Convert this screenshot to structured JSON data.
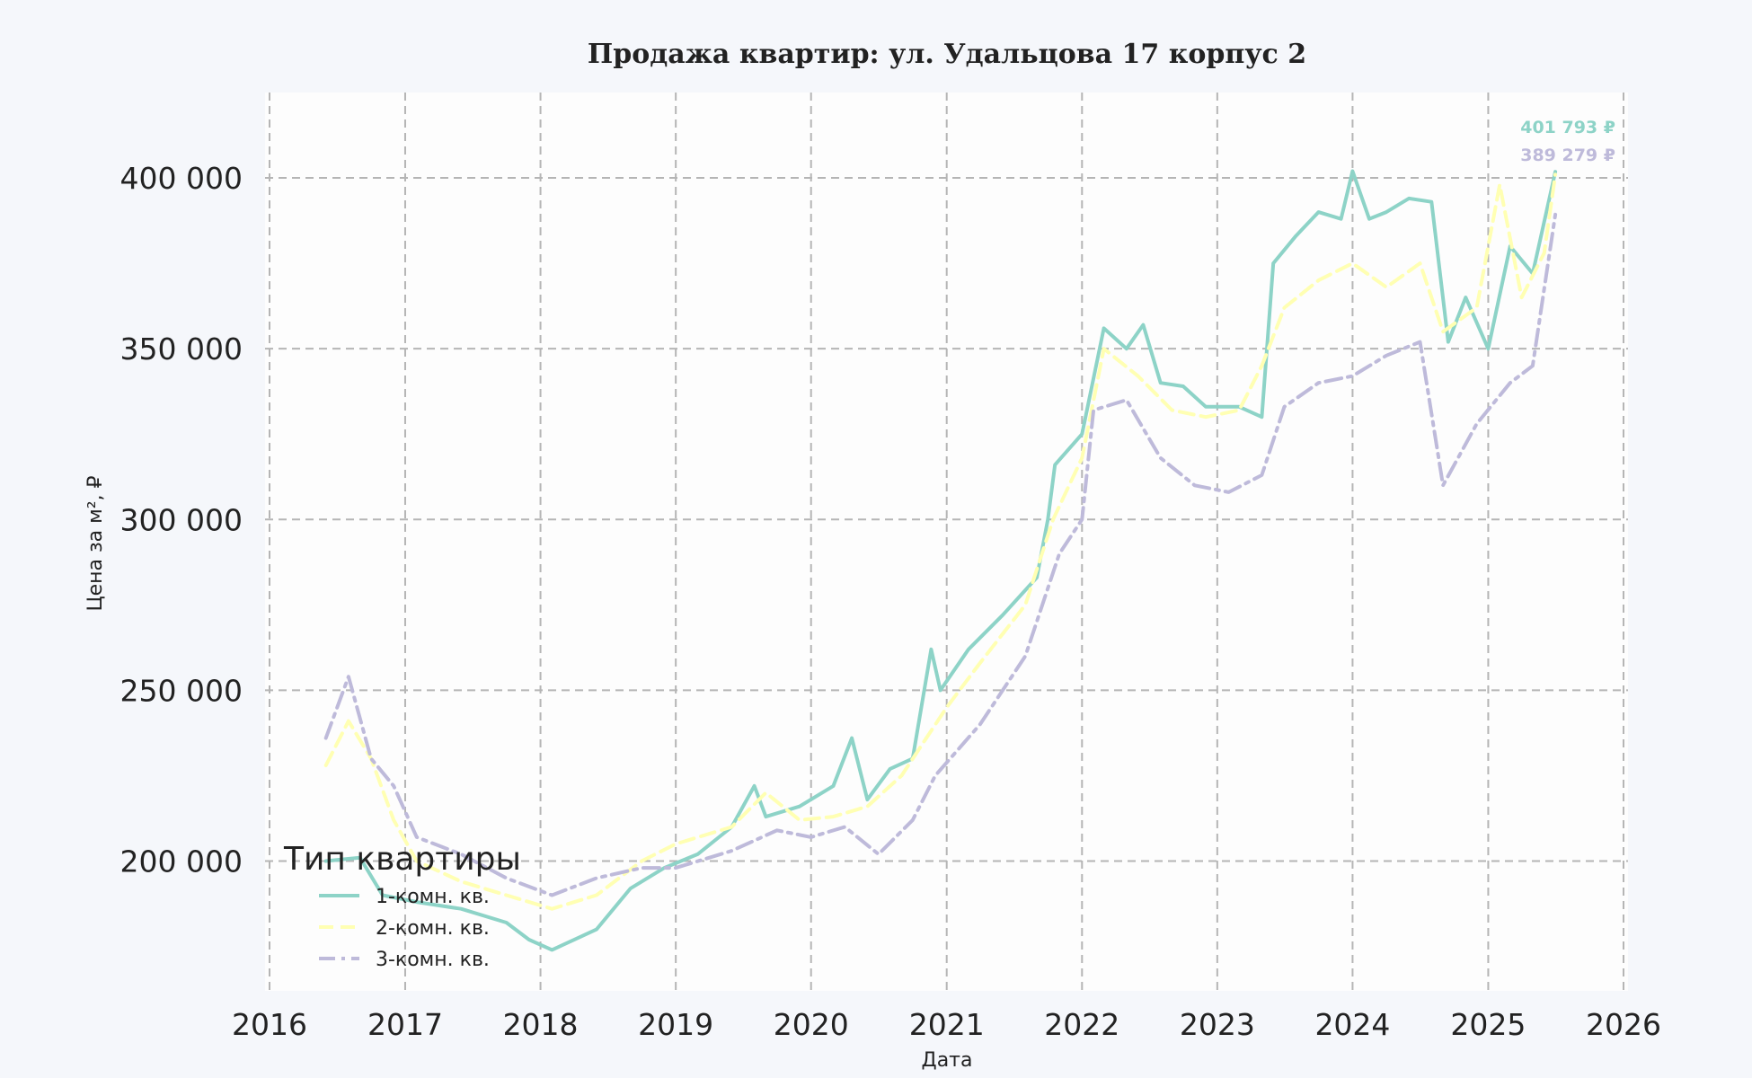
{
  "chart_data": {
    "type": "line",
    "title": "Продажа квартир: ул. Удальцова 17 корпус 2",
    "xlabel": "Дата",
    "ylabel": "Цена за м², ₽",
    "xlim": [
      "2016-01-01",
      "2026-01-01"
    ],
    "ylim": [
      162000,
      425000
    ],
    "x_ticks": [
      "2016",
      "2017",
      "2018",
      "2019",
      "2020",
      "2021",
      "2022",
      "2023",
      "2024",
      "2025",
      "2026"
    ],
    "y_ticks": [
      {
        "value": 200000,
        "label": "200 000"
      },
      {
        "value": 250000,
        "label": "250 000"
      },
      {
        "value": 300000,
        "label": "300 000"
      },
      {
        "value": 350000,
        "label": "350 000"
      },
      {
        "value": 400000,
        "label": "400 000"
      }
    ],
    "grid": true,
    "legend": {
      "title": "Тип квартиры",
      "position": "lower-left"
    },
    "series": [
      {
        "name": "1-комн. кв.",
        "color": "#8dd3c7",
        "dash": "solid",
        "end_label": "401 793 ₽",
        "points": [
          [
            "2016-06-01",
            200000
          ],
          [
            "2016-09-01",
            201000
          ],
          [
            "2016-11-01",
            190000
          ],
          [
            "2017-02-01",
            188000
          ],
          [
            "2017-06-01",
            186000
          ],
          [
            "2017-10-01",
            182000
          ],
          [
            "2017-12-01",
            177000
          ],
          [
            "2018-02-01",
            174000
          ],
          [
            "2018-06-01",
            180000
          ],
          [
            "2018-09-01",
            192000
          ],
          [
            "2018-12-01",
            198000
          ],
          [
            "2019-03-01",
            202000
          ],
          [
            "2019-06-01",
            210000
          ],
          [
            "2019-08-01",
            222000
          ],
          [
            "2019-09-01",
            213000
          ],
          [
            "2019-12-01",
            216000
          ],
          [
            "2020-03-01",
            222000
          ],
          [
            "2020-04-20",
            236000
          ],
          [
            "2020-06-01",
            218000
          ],
          [
            "2020-08-01",
            227000
          ],
          [
            "2020-10-01",
            230000
          ],
          [
            "2020-11-20",
            262000
          ],
          [
            "2020-12-15",
            250000
          ],
          [
            "2021-03-01",
            262000
          ],
          [
            "2021-06-01",
            272000
          ],
          [
            "2021-09-01",
            283000
          ],
          [
            "2021-10-01",
            300000
          ],
          [
            "2021-10-20",
            316000
          ],
          [
            "2022-01-01",
            325000
          ],
          [
            "2022-03-01",
            356000
          ],
          [
            "2022-05-01",
            350000
          ],
          [
            "2022-06-15",
            357000
          ],
          [
            "2022-08-01",
            340000
          ],
          [
            "2022-10-01",
            339000
          ],
          [
            "2022-12-01",
            333000
          ],
          [
            "2023-03-01",
            333000
          ],
          [
            "2023-05-01",
            330000
          ],
          [
            "2023-06-01",
            375000
          ],
          [
            "2023-08-01",
            383000
          ],
          [
            "2023-10-01",
            390000
          ],
          [
            "2023-12-01",
            388000
          ],
          [
            "2024-01-01",
            402000
          ],
          [
            "2024-02-15",
            388000
          ],
          [
            "2024-04-01",
            390000
          ],
          [
            "2024-06-01",
            394000
          ],
          [
            "2024-08-01",
            393000
          ],
          [
            "2024-09-15",
            352000
          ],
          [
            "2024-11-01",
            365000
          ],
          [
            "2025-01-01",
            350000
          ],
          [
            "2025-03-01",
            380000
          ],
          [
            "2025-05-01",
            372000
          ],
          [
            "2025-07-01",
            401793
          ]
        ]
      },
      {
        "name": "2-комн. кв.",
        "color": "#ffffb3",
        "dash": "dashed",
        "end_label": "",
        "points": [
          [
            "2016-06-01",
            228000
          ],
          [
            "2016-08-01",
            241000
          ],
          [
            "2016-10-01",
            230000
          ],
          [
            "2016-12-01",
            212000
          ],
          [
            "2017-02-01",
            200000
          ],
          [
            "2017-06-01",
            194000
          ],
          [
            "2017-10-01",
            190000
          ],
          [
            "2018-02-01",
            186000
          ],
          [
            "2018-06-01",
            190000
          ],
          [
            "2018-10-01",
            200000
          ],
          [
            "2019-01-01",
            205000
          ],
          [
            "2019-06-01",
            210000
          ],
          [
            "2019-09-01",
            220000
          ],
          [
            "2019-12-01",
            212000
          ],
          [
            "2020-03-01",
            213000
          ],
          [
            "2020-06-01",
            216000
          ],
          [
            "2020-09-01",
            225000
          ],
          [
            "2020-11-01",
            235000
          ],
          [
            "2021-01-01",
            245000
          ],
          [
            "2021-04-01",
            258000
          ],
          [
            "2021-08-01",
            275000
          ],
          [
            "2021-10-15",
            300000
          ],
          [
            "2022-01-01",
            318000
          ],
          [
            "2022-03-01",
            350000
          ],
          [
            "2022-06-01",
            342000
          ],
          [
            "2022-09-01",
            332000
          ],
          [
            "2022-12-01",
            330000
          ],
          [
            "2023-03-01",
            332000
          ],
          [
            "2023-05-01",
            345000
          ],
          [
            "2023-07-01",
            362000
          ],
          [
            "2023-10-01",
            370000
          ],
          [
            "2024-01-01",
            375000
          ],
          [
            "2024-04-01",
            368000
          ],
          [
            "2024-07-01",
            375000
          ],
          [
            "2024-09-01",
            355000
          ],
          [
            "2024-12-01",
            362000
          ],
          [
            "2025-02-01",
            398000
          ],
          [
            "2025-04-01",
            365000
          ],
          [
            "2025-06-01",
            378000
          ],
          [
            "2025-07-01",
            401000
          ]
        ]
      },
      {
        "name": "3-комн. кв.",
        "color": "#bebada",
        "dash": "dashdot",
        "end_label": "389 279 ₽",
        "points": [
          [
            "2016-06-01",
            236000
          ],
          [
            "2016-08-01",
            254000
          ],
          [
            "2016-10-01",
            230000
          ],
          [
            "2016-12-01",
            222000
          ],
          [
            "2017-02-01",
            207000
          ],
          [
            "2017-06-01",
            202000
          ],
          [
            "2017-10-01",
            195000
          ],
          [
            "2018-02-01",
            190000
          ],
          [
            "2018-06-01",
            195000
          ],
          [
            "2018-10-01",
            198000
          ],
          [
            "2019-01-01",
            198000
          ],
          [
            "2019-06-01",
            203000
          ],
          [
            "2019-10-01",
            209000
          ],
          [
            "2020-01-01",
            207000
          ],
          [
            "2020-04-01",
            210000
          ],
          [
            "2020-07-01",
            202000
          ],
          [
            "2020-10-01",
            212000
          ],
          [
            "2020-12-01",
            225000
          ],
          [
            "2021-04-01",
            240000
          ],
          [
            "2021-08-01",
            260000
          ],
          [
            "2021-11-01",
            290000
          ],
          [
            "2022-01-01",
            300000
          ],
          [
            "2022-02-01",
            332000
          ],
          [
            "2022-05-01",
            335000
          ],
          [
            "2022-08-01",
            318000
          ],
          [
            "2022-11-01",
            310000
          ],
          [
            "2023-02-01",
            308000
          ],
          [
            "2023-05-01",
            313000
          ],
          [
            "2023-07-01",
            333000
          ],
          [
            "2023-10-01",
            340000
          ],
          [
            "2024-01-01",
            342000
          ],
          [
            "2024-04-01",
            348000
          ],
          [
            "2024-07-01",
            352000
          ],
          [
            "2024-09-01",
            310000
          ],
          [
            "2024-12-01",
            328000
          ],
          [
            "2025-03-01",
            340000
          ],
          [
            "2025-05-01",
            345000
          ],
          [
            "2025-07-01",
            389279
          ]
        ]
      }
    ]
  }
}
